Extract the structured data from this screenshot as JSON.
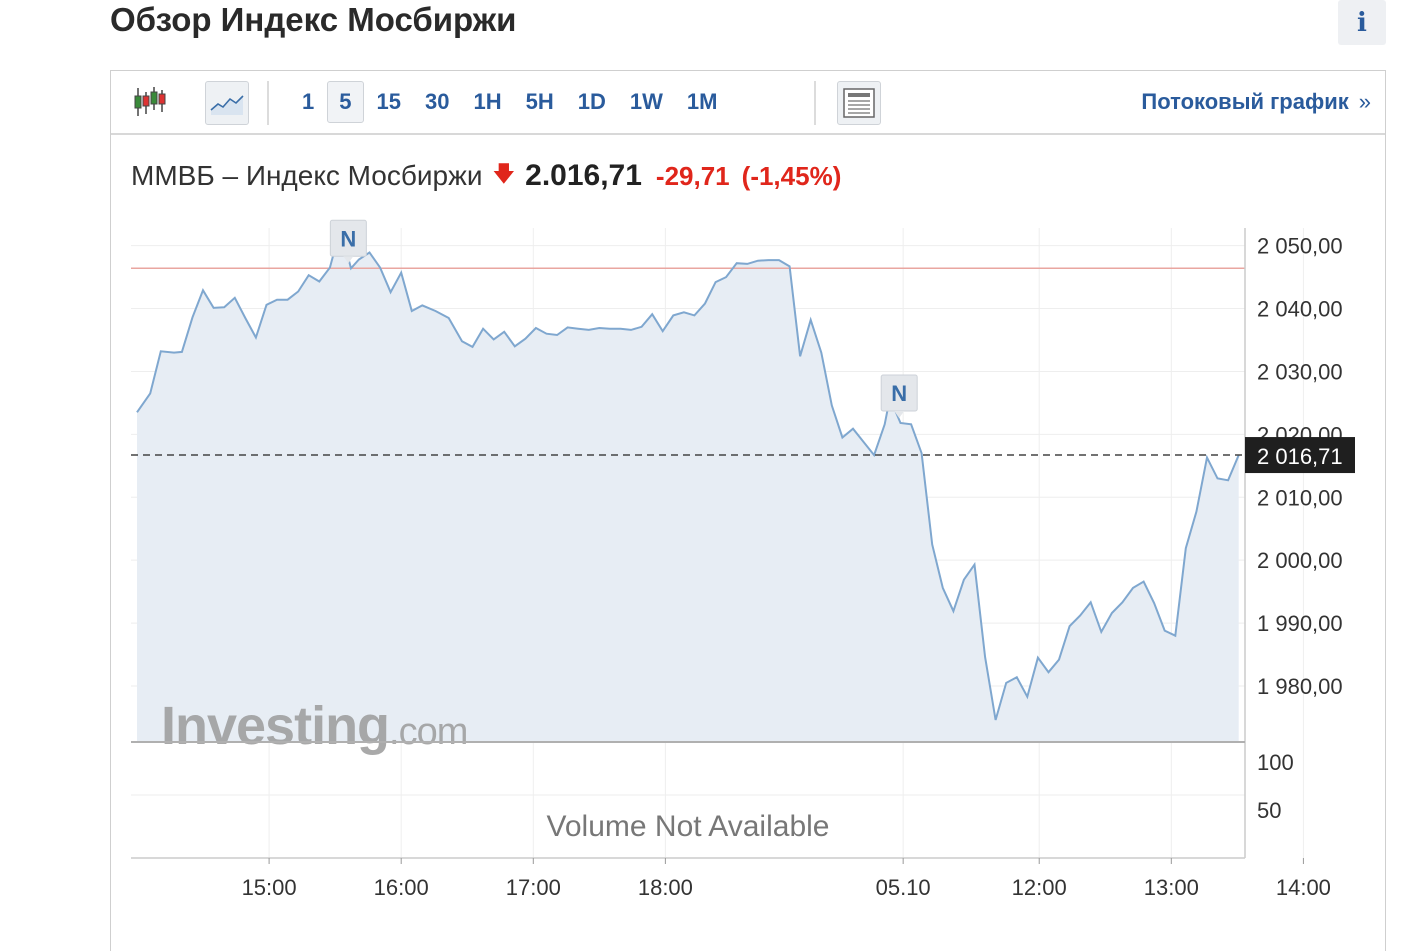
{
  "page": {
    "title": "Обзор Индекс Мосбиржи",
    "info_label": "i"
  },
  "toolbar": {
    "intervals": [
      "1",
      "5",
      "15",
      "30",
      "1H",
      "5H",
      "1D",
      "1W",
      "1M"
    ],
    "active_interval": "5",
    "streaming_label": "Потоковый график",
    "streaming_chevron": "»"
  },
  "quote": {
    "name": "ММВБ – Индекс Мосбиржи",
    "direction": "down",
    "last": "2.016,71",
    "change": "-29,71",
    "change_pct": "(-1,45%)",
    "down_color": "#e0261b"
  },
  "chart_data": {
    "type": "area",
    "y_tick_labels": [
      "2 050,00",
      "2 040,00",
      "2 030,00",
      "2 020,00",
      "2 010,00",
      "2 000,00",
      "1 990,00",
      "1 980,00"
    ],
    "y_ticks": [
      2050,
      2040,
      2030,
      2020,
      2010,
      2000,
      1990,
      1980
    ],
    "ylim": [
      1971.1,
      2052.8
    ],
    "current_value": 2016.71,
    "current_label": "2 016,71",
    "reference_value": 2046.4,
    "x_tick_labels": [
      "15:00",
      "16:00",
      "17:00",
      "18:00",
      "05.10",
      "12:00",
      "13:00",
      "14:00"
    ],
    "x_tick_times": [
      1.0,
      2.0,
      3.0,
      4.0,
      5.8,
      6.83,
      7.83,
      8.83
    ],
    "xlim": [
      0.0,
      8.35
    ],
    "series": [
      {
        "x": [
          0.0,
          0.1,
          0.18,
          0.28,
          0.34,
          0.42,
          0.5,
          0.58,
          0.66,
          0.74,
          0.82,
          0.9,
          0.98,
          1.06,
          1.14,
          1.22,
          1.3,
          1.38,
          1.46,
          1.54,
          1.62,
          1.68,
          1.76,
          1.84,
          1.92,
          2.0,
          2.08,
          2.16,
          2.26,
          2.36,
          2.46,
          2.54,
          2.62,
          2.7,
          2.78,
          2.86,
          2.94,
          3.02,
          3.1,
          3.18,
          3.26,
          3.34,
          3.42,
          3.5,
          3.58,
          3.66,
          3.74,
          3.82,
          3.9,
          3.98,
          4.06,
          4.14,
          4.22,
          4.3,
          4.38,
          4.46,
          4.54,
          4.62,
          4.7,
          4.78,
          4.86,
          4.94,
          5.02,
          5.1,
          5.18,
          5.26,
          5.34,
          5.42,
          5.5,
          5.58,
          5.66,
          5.7,
          5.78,
          5.86,
          5.94,
          6.02,
          6.1,
          6.18,
          6.26,
          6.34,
          6.42,
          6.5,
          6.58,
          6.66,
          6.74,
          6.82,
          6.9,
          6.98,
          7.06,
          7.14,
          7.22,
          7.3,
          7.38,
          7.46,
          7.54,
          7.62,
          7.7,
          7.78,
          7.86,
          7.94,
          8.02,
          8.1,
          8.18,
          8.26,
          8.34
        ],
        "values": [
          2023.5,
          2026.5,
          2033.2,
          2033.0,
          2033.1,
          2038.6,
          2042.9,
          2040.1,
          2040.2,
          2041.7,
          2038.5,
          2035.4,
          2040.6,
          2041.4,
          2041.4,
          2042.7,
          2045.3,
          2044.3,
          2046.5,
          2052.7,
          2046.4,
          2047.8,
          2048.9,
          2046.5,
          2042.6,
          2045.7,
          2039.6,
          2040.5,
          2039.6,
          2038.5,
          2034.8,
          2033.9,
          2036.8,
          2035.1,
          2036.3,
          2034.0,
          2035.2,
          2036.9,
          2036.0,
          2035.8,
          2037.0,
          2036.8,
          2036.6,
          2036.9,
          2036.8,
          2036.8,
          2036.6,
          2037.1,
          2039.1,
          2036.4,
          2038.9,
          2039.4,
          2038.9,
          2040.8,
          2044.2,
          2045.0,
          2047.2,
          2047.1,
          2047.6,
          2047.7,
          2047.7,
          2046.7,
          2032.4,
          2038.2,
          2033.0,
          2024.6,
          2019.5,
          2020.9,
          2018.8,
          2016.7,
          2021.6,
          2025.8,
          2021.8,
          2021.6,
          2017.0,
          2002.5,
          1995.6,
          1991.9,
          1996.9,
          1999.3,
          1984.6,
          1974.6,
          1980.5,
          1981.4,
          1978.3,
          1984.5,
          1982.2,
          1984.2,
          1989.5,
          1991.2,
          1993.3,
          1988.6,
          1991.6,
          1993.3,
          1995.6,
          1996.6,
          1993.2,
          1988.8,
          1988.0,
          2001.9,
          2007.7,
          2016.3,
          2013.0,
          2012.7,
          2016.7
        ]
      }
    ],
    "news_markers": [
      {
        "label": "N",
        "x": 1.6
      },
      {
        "label": "N",
        "x": 5.77
      }
    ],
    "volume": {
      "message": "Volume Not Available",
      "y_tick_labels": [
        "100",
        "50"
      ]
    },
    "watermark": {
      "brand": "Investing",
      "suffix": ".com"
    },
    "line_color": "#7fa7cf",
    "fill_color": "#e7edf4",
    "reference_color": "#e9a6a0",
    "grid": true
  }
}
